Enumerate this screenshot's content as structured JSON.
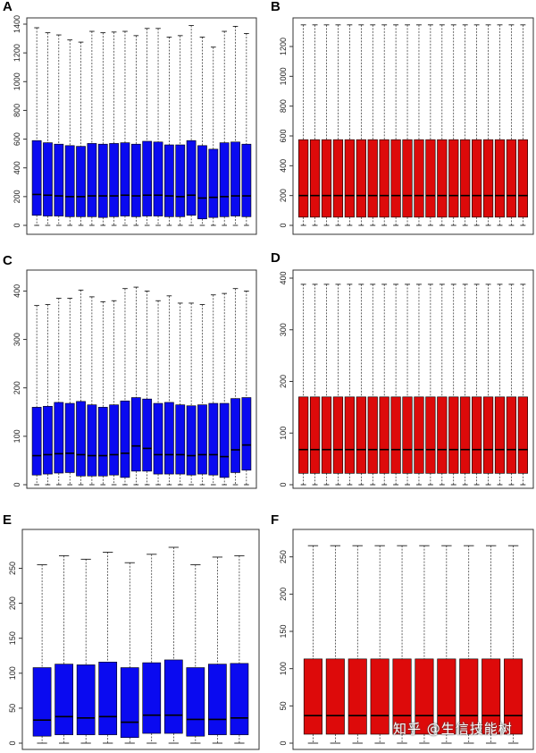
{
  "colors": {
    "blue": "#0a0af0",
    "red": "#dd0a0a",
    "box_stroke": "#000000"
  },
  "watermark": "知乎 @生信技能树",
  "chart_data": [
    {
      "panel": "A",
      "type": "boxplot",
      "color": "blue",
      "ylim": [
        0,
        1400
      ],
      "yticks": [
        0,
        200,
        400,
        600,
        800,
        1000,
        1200,
        1400
      ],
      "xlabel": "",
      "ylabel": "",
      "grid": false,
      "boxes": [
        {
          "min": 0,
          "q1": 70,
          "median": 215,
          "q3": 590,
          "max": 1375
        },
        {
          "min": 0,
          "q1": 65,
          "median": 210,
          "q3": 575,
          "max": 1340
        },
        {
          "min": 0,
          "q1": 65,
          "median": 205,
          "q3": 565,
          "max": 1325
        },
        {
          "min": 0,
          "q1": 60,
          "median": 200,
          "q3": 555,
          "max": 1290
        },
        {
          "min": 0,
          "q1": 60,
          "median": 200,
          "q3": 550,
          "max": 1275
        },
        {
          "min": 0,
          "q1": 60,
          "median": 205,
          "q3": 570,
          "max": 1350
        },
        {
          "min": 0,
          "q1": 55,
          "median": 205,
          "q3": 565,
          "max": 1340
        },
        {
          "min": 0,
          "q1": 60,
          "median": 205,
          "q3": 570,
          "max": 1345
        },
        {
          "min": 0,
          "q1": 65,
          "median": 210,
          "q3": 575,
          "max": 1350
        },
        {
          "min": 0,
          "q1": 60,
          "median": 205,
          "q3": 565,
          "max": 1320
        },
        {
          "min": 0,
          "q1": 65,
          "median": 210,
          "q3": 585,
          "max": 1370
        },
        {
          "min": 0,
          "q1": 65,
          "median": 210,
          "q3": 580,
          "max": 1370
        },
        {
          "min": 0,
          "q1": 60,
          "median": 205,
          "q3": 560,
          "max": 1310
        },
        {
          "min": 0,
          "q1": 60,
          "median": 200,
          "q3": 560,
          "max": 1320
        },
        {
          "min": 0,
          "q1": 70,
          "median": 210,
          "q3": 590,
          "max": 1390
        },
        {
          "min": 0,
          "q1": 45,
          "median": 190,
          "q3": 555,
          "max": 1310
        },
        {
          "min": 0,
          "q1": 55,
          "median": 195,
          "q3": 530,
          "max": 1240
        },
        {
          "min": 0,
          "q1": 60,
          "median": 200,
          "q3": 575,
          "max": 1350
        },
        {
          "min": 0,
          "q1": 65,
          "median": 205,
          "q3": 580,
          "max": 1385
        },
        {
          "min": 0,
          "q1": 60,
          "median": 205,
          "q3": 565,
          "max": 1335
        }
      ]
    },
    {
      "panel": "B",
      "type": "boxplot",
      "color": "red",
      "ylim": [
        0,
        1350
      ],
      "yticks": [
        0,
        200,
        400,
        600,
        800,
        1000,
        1200
      ],
      "xlabel": "",
      "ylabel": "",
      "grid": false,
      "uniform_count": 20,
      "uniform_box": {
        "min": 0,
        "q1": 55,
        "median": 200,
        "q3": 575,
        "max": 1345
      }
    },
    {
      "panel": "C",
      "type": "boxplot",
      "color": "blue",
      "ylim": [
        0,
        410
      ],
      "yticks": [
        0,
        100,
        200,
        300,
        400
      ],
      "xlabel": "",
      "ylabel": "",
      "grid": false,
      "boxes": [
        {
          "min": 0,
          "q1": 20,
          "median": 60,
          "q3": 160,
          "max": 370
        },
        {
          "min": 0,
          "q1": 22,
          "median": 62,
          "q3": 162,
          "max": 372
        },
        {
          "min": 0,
          "q1": 24,
          "median": 64,
          "q3": 170,
          "max": 385
        },
        {
          "min": 0,
          "q1": 25,
          "median": 65,
          "q3": 168,
          "max": 385
        },
        {
          "min": 0,
          "q1": 18,
          "median": 62,
          "q3": 172,
          "max": 402
        },
        {
          "min": 0,
          "q1": 18,
          "median": 60,
          "q3": 165,
          "max": 388
        },
        {
          "min": 0,
          "q1": 18,
          "median": 60,
          "q3": 160,
          "max": 378
        },
        {
          "min": 0,
          "q1": 20,
          "median": 62,
          "q3": 165,
          "max": 380
        },
        {
          "min": 0,
          "q1": 15,
          "median": 65,
          "q3": 173,
          "max": 405
        },
        {
          "min": 0,
          "q1": 28,
          "median": 80,
          "q3": 180,
          "max": 408
        },
        {
          "min": 0,
          "q1": 28,
          "median": 75,
          "q3": 177,
          "max": 400
        },
        {
          "min": 0,
          "q1": 22,
          "median": 62,
          "q3": 168,
          "max": 380
        },
        {
          "min": 0,
          "q1": 22,
          "median": 62,
          "q3": 170,
          "max": 390
        },
        {
          "min": 0,
          "q1": 22,
          "median": 62,
          "q3": 165,
          "max": 375
        },
        {
          "min": 0,
          "q1": 20,
          "median": 60,
          "q3": 163,
          "max": 375
        },
        {
          "min": 0,
          "q1": 22,
          "median": 62,
          "q3": 165,
          "max": 372
        },
        {
          "min": 0,
          "q1": 20,
          "median": 62,
          "q3": 168,
          "max": 392
        },
        {
          "min": 0,
          "q1": 15,
          "median": 58,
          "q3": 168,
          "max": 395
        },
        {
          "min": 0,
          "q1": 25,
          "median": 72,
          "q3": 178,
          "max": 405
        },
        {
          "min": 0,
          "q1": 30,
          "median": 82,
          "q3": 180,
          "max": 400
        }
      ]
    },
    {
      "panel": "D",
      "type": "boxplot",
      "color": "red",
      "ylim": [
        0,
        400
      ],
      "yticks": [
        0,
        100,
        200,
        300,
        400
      ],
      "xlabel": "",
      "ylabel": "",
      "grid": false,
      "uniform_count": 20,
      "uniform_box": {
        "min": 0,
        "q1": 22,
        "median": 68,
        "q3": 170,
        "max": 388
      }
    },
    {
      "panel": "E",
      "type": "boxplot",
      "color": "blue",
      "ylim": [
        0,
        280
      ],
      "yticks": [
        0,
        50,
        100,
        150,
        200,
        250
      ],
      "xlabel": "",
      "ylabel": "",
      "grid": false,
      "boxes": [
        {
          "min": 0,
          "q1": 10,
          "median": 33,
          "q3": 108,
          "max": 255
        },
        {
          "min": 0,
          "q1": 12,
          "median": 38,
          "q3": 113,
          "max": 268
        },
        {
          "min": 0,
          "q1": 12,
          "median": 36,
          "q3": 112,
          "max": 263
        },
        {
          "min": 0,
          "q1": 12,
          "median": 38,
          "q3": 116,
          "max": 273
        },
        {
          "min": 0,
          "q1": 8,
          "median": 30,
          "q3": 108,
          "max": 258
        },
        {
          "min": 0,
          "q1": 14,
          "median": 40,
          "q3": 115,
          "max": 270
        },
        {
          "min": 0,
          "q1": 14,
          "median": 40,
          "q3": 119,
          "max": 280
        },
        {
          "min": 0,
          "q1": 10,
          "median": 34,
          "q3": 108,
          "max": 255
        },
        {
          "min": 0,
          "q1": 12,
          "median": 34,
          "q3": 113,
          "max": 266
        },
        {
          "min": 0,
          "q1": 12,
          "median": 36,
          "q3": 114,
          "max": 268
        }
      ]
    },
    {
      "panel": "F",
      "type": "boxplot",
      "color": "red",
      "ylim": [
        0,
        270
      ],
      "yticks": [
        0,
        50,
        100,
        150,
        200,
        250
      ],
      "xlabel": "",
      "ylabel": "",
      "grid": false,
      "uniform_count": 10,
      "uniform_box": {
        "min": 0,
        "q1": 12,
        "median": 37,
        "q3": 113,
        "max": 265
      }
    }
  ]
}
